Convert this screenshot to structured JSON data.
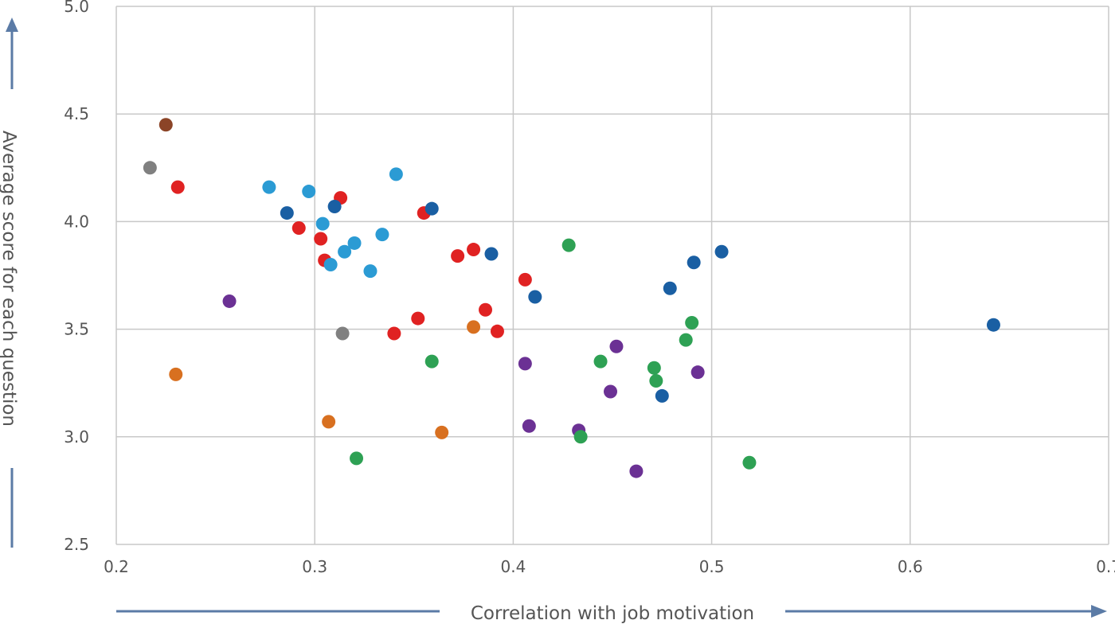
{
  "chart_data": {
    "type": "scatter",
    "xlabel": "Correlation with job motivation",
    "ylabel": "Average score for each question",
    "xlim": [
      0.2,
      0.7
    ],
    "ylim": [
      2.5,
      5.0
    ],
    "x_ticks": [
      "0.2",
      "0.3",
      "0.4",
      "0.5",
      "0.6",
      "0.7"
    ],
    "y_ticks": [
      "2.5",
      "3.0",
      "3.5",
      "4.0",
      "4.5",
      "5.0"
    ],
    "grid": true,
    "axis_color": "#5b7ba6",
    "series": [
      {
        "color": "#8b4427",
        "points": [
          [
            0.225,
            4.45
          ]
        ]
      },
      {
        "color": "#808080",
        "points": [
          [
            0.217,
            4.25
          ],
          [
            0.314,
            3.48
          ]
        ]
      },
      {
        "color": "#e02222",
        "points": [
          [
            0.231,
            4.16
          ],
          [
            0.313,
            4.11
          ],
          [
            0.292,
            3.97
          ],
          [
            0.303,
            3.92
          ],
          [
            0.305,
            3.82
          ],
          [
            0.355,
            4.04
          ],
          [
            0.372,
            3.84
          ],
          [
            0.38,
            3.87
          ],
          [
            0.406,
            3.73
          ],
          [
            0.386,
            3.59
          ],
          [
            0.392,
            3.49
          ],
          [
            0.352,
            3.55
          ],
          [
            0.34,
            3.48
          ]
        ]
      },
      {
        "color": "#2b9bd4",
        "points": [
          [
            0.277,
            4.16
          ],
          [
            0.297,
            4.14
          ],
          [
            0.304,
            3.99
          ],
          [
            0.308,
            3.8
          ],
          [
            0.315,
            3.86
          ],
          [
            0.32,
            3.9
          ],
          [
            0.328,
            3.77
          ],
          [
            0.334,
            3.94
          ],
          [
            0.341,
            4.22
          ]
        ]
      },
      {
        "color": "#1a5fa3",
        "points": [
          [
            0.286,
            4.04
          ],
          [
            0.31,
            4.07
          ],
          [
            0.359,
            4.06
          ],
          [
            0.389,
            3.85
          ],
          [
            0.411,
            3.65
          ],
          [
            0.479,
            3.69
          ],
          [
            0.491,
            3.81
          ],
          [
            0.505,
            3.86
          ],
          [
            0.475,
            3.19
          ],
          [
            0.642,
            3.52
          ]
        ]
      },
      {
        "color": "#6b3194",
        "points": [
          [
            0.257,
            3.63
          ],
          [
            0.406,
            3.34
          ],
          [
            0.408,
            3.05
          ],
          [
            0.433,
            3.03
          ],
          [
            0.449,
            3.21
          ],
          [
            0.452,
            3.42
          ],
          [
            0.462,
            2.84
          ],
          [
            0.493,
            3.3
          ]
        ]
      },
      {
        "color": "#d87020",
        "points": [
          [
            0.23,
            3.29
          ],
          [
            0.307,
            3.07
          ],
          [
            0.364,
            3.02
          ],
          [
            0.38,
            3.51
          ]
        ]
      },
      {
        "color": "#2ea154",
        "points": [
          [
            0.321,
            2.9
          ],
          [
            0.359,
            3.35
          ],
          [
            0.428,
            3.89
          ],
          [
            0.434,
            3.0
          ],
          [
            0.444,
            3.35
          ],
          [
            0.471,
            3.32
          ],
          [
            0.472,
            3.26
          ],
          [
            0.487,
            3.45
          ],
          [
            0.49,
            3.53
          ],
          [
            0.519,
            2.88
          ]
        ]
      }
    ]
  }
}
